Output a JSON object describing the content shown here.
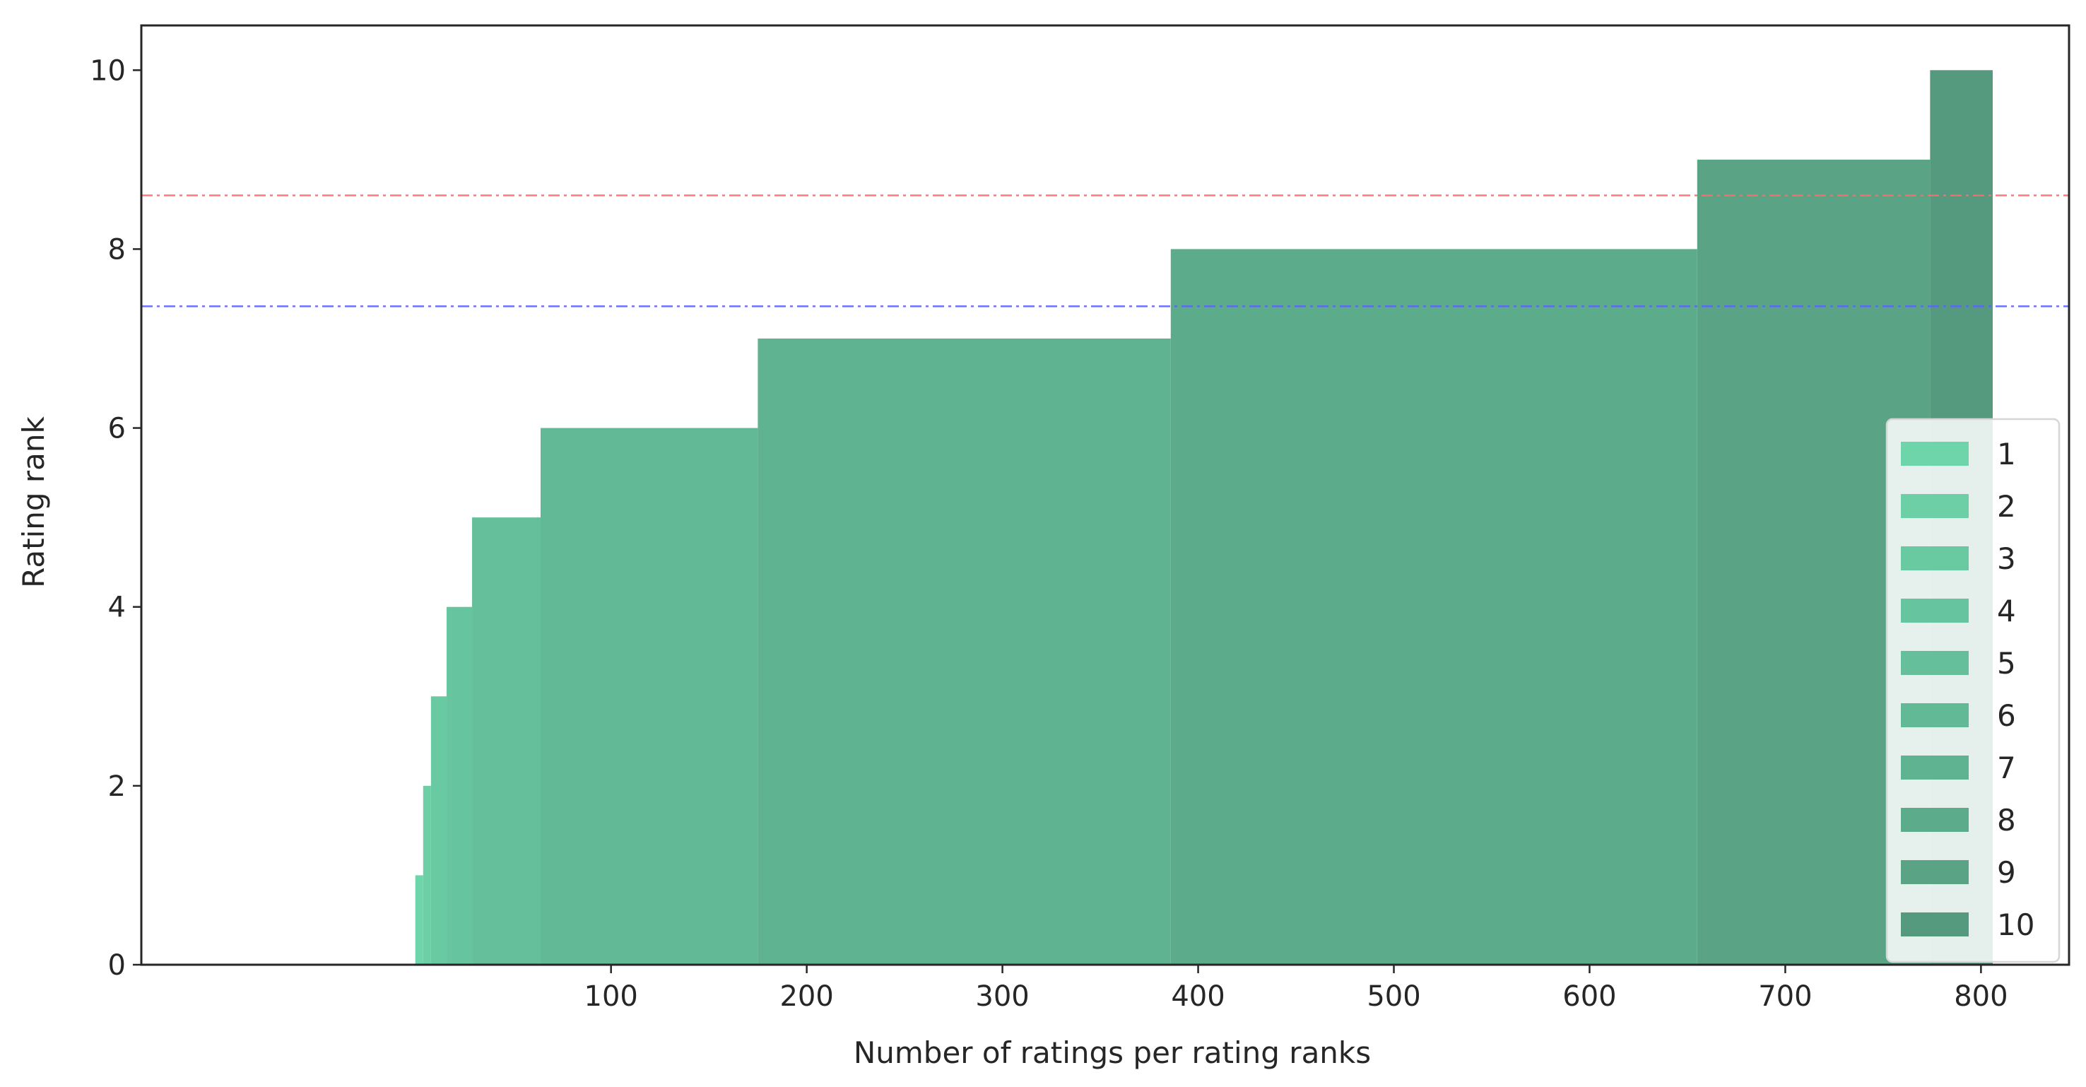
{
  "chart_data": {
    "type": "bar",
    "orientation": "stepped-horizontal",
    "title": "",
    "xlabel": "Number of ratings per rating ranks",
    "ylabel": "Rating rank",
    "xlim": [
      -140,
      845
    ],
    "ylim": [
      0,
      10.5
    ],
    "xticks": [
      100,
      200,
      300,
      400,
      500,
      600,
      700,
      800
    ],
    "yticks": [
      0,
      2,
      4,
      6,
      8,
      10
    ],
    "grid": false,
    "legend_position": "lower-right",
    "bars": [
      {
        "name": "1",
        "rank": 1,
        "x_start": 0,
        "x_end": 4,
        "color": "#6ed4a9"
      },
      {
        "name": "2",
        "rank": 2,
        "x_start": 4,
        "x_end": 8,
        "color": "#6ccfa6"
      },
      {
        "name": "3",
        "rank": 3,
        "x_start": 8,
        "x_end": 16,
        "color": "#69caa2"
      },
      {
        "name": "4",
        "rank": 4,
        "x_start": 16,
        "x_end": 29,
        "color": "#66c49e"
      },
      {
        "name": "5",
        "rank": 5,
        "x_start": 29,
        "x_end": 64,
        "color": "#64bf9a"
      },
      {
        "name": "6",
        "rank": 6,
        "x_start": 64,
        "x_end": 175,
        "color": "#62b995"
      },
      {
        "name": "7",
        "rank": 7,
        "x_start": 175,
        "x_end": 386,
        "color": "#5fb391"
      },
      {
        "name": "8",
        "rank": 8,
        "x_start": 386,
        "x_end": 655,
        "color": "#5cac8c"
      },
      {
        "name": "9",
        "rank": 9,
        "x_start": 655,
        "x_end": 774,
        "color": "#5aa485"
      },
      {
        "name": "10",
        "rank": 10,
        "x_start": 774,
        "x_end": 806,
        "color": "#559a7e"
      }
    ],
    "reference_lines": [
      {
        "y": 8.6,
        "color": "#ff6b6b",
        "style": "dash-dot"
      },
      {
        "y": 7.36,
        "color": "#5a63ff",
        "style": "dash-dot"
      }
    ]
  }
}
